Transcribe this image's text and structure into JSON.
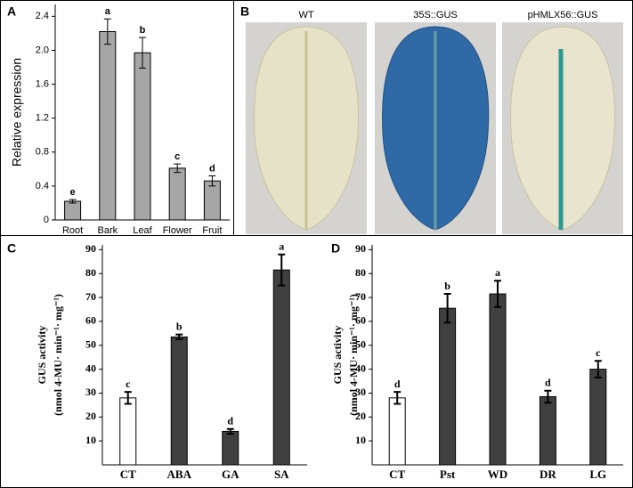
{
  "chart_data": [
    {
      "type": "bar",
      "panel": "A",
      "ylabel": "Relative expression",
      "categories": [
        "Root",
        "Bark",
        "Leaf",
        "Flower",
        "Fruit"
      ],
      "values": [
        0.22,
        2.22,
        1.97,
        0.61,
        0.46
      ],
      "errors": [
        0.02,
        0.15,
        0.18,
        0.05,
        0.06
      ],
      "significance": [
        "e",
        "a",
        "b",
        "c",
        "d"
      ],
      "color": "#a6a6a6",
      "ylim": [
        0,
        2.54
      ],
      "yticks": [
        0,
        0.4,
        0.8,
        1.2,
        1.6,
        {
          "value": 2,
          "label": "2.0"
        },
        2.4
      ]
    },
    {
      "type": "bar",
      "panel": "C",
      "ylabel": [
        "GUS activity",
        "(nmol 4-MU· min⁻¹· mg⁻¹)"
      ],
      "categories": [
        "CT",
        "ABA",
        "GA",
        "SA"
      ],
      "values": [
        28,
        53.5,
        14,
        81.5
      ],
      "errors": [
        2.5,
        1,
        1,
        6.5
      ],
      "significance": [
        "c",
        "b",
        "d",
        "a"
      ],
      "colors": [
        "#ffffff",
        "#404040",
        "#404040",
        "#404040"
      ],
      "ylim": [
        0,
        92
      ],
      "yticks": [
        10,
        20,
        30,
        40,
        50,
        60,
        70,
        80,
        90
      ]
    },
    {
      "type": "bar",
      "panel": "D",
      "ylabel": [
        "GUS activity",
        "(nmol 4-MU· min⁻¹· mg⁻¹)"
      ],
      "categories": [
        "CT",
        "Pst",
        "WD",
        "DR",
        "LG"
      ],
      "values": [
        28,
        65.5,
        71.5,
        28.5,
        40
      ],
      "errors": [
        2.5,
        6,
        5.5,
        2.5,
        3.5
      ],
      "significance": [
        "d",
        "b",
        "a",
        "d",
        "c"
      ],
      "colors": [
        "#ffffff",
        "#404040",
        "#404040",
        "#404040",
        "#404040"
      ],
      "ylim": [
        0,
        92
      ],
      "yticks": [
        10,
        20,
        30,
        40,
        50,
        60,
        70,
        80,
        90
      ]
    }
  ],
  "image_panel": {
    "panel": "B",
    "titles": [
      "WT",
      "35S::GUS",
      "pHMLX56::GUS"
    ]
  }
}
